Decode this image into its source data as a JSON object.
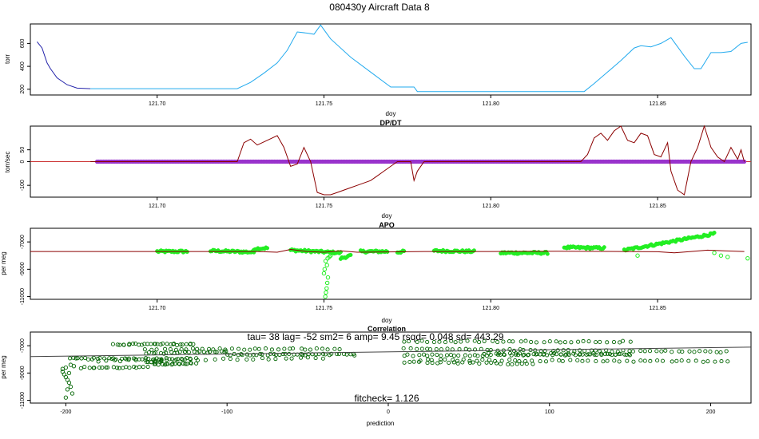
{
  "figure": {
    "title": "080430y   Aircraft Data 8"
  },
  "colors": {
    "pressure_dark": "#2222aa",
    "pressure_light": "#22aaee",
    "dpdt_line": "#8b0000",
    "dpdt_points": "#9933cc",
    "ref_line": "#cc3333",
    "apo_points": "#22ee22",
    "apo_line": "#8b0000",
    "corr_points": "#006400",
    "fit_line": "#444444",
    "axis": "#000000"
  },
  "chart_data": [
    {
      "type": "line",
      "title": "",
      "xlabel": "doy",
      "ylabel": "torr",
      "xlim": [
        121.662,
        121.878
      ],
      "ylim": [
        150,
        770
      ],
      "xticks": [
        121.7,
        121.75,
        121.8,
        121.85
      ],
      "xtick_labels": [
        "121.70",
        "121.75",
        "121.80",
        "121.85"
      ],
      "yticks": [
        200,
        400,
        600
      ],
      "ytick_labels": [
        "200",
        "400",
        "600"
      ],
      "series": [
        {
          "color_key": "pressure_dark",
          "x": [
            121.664,
            121.6655,
            121.667,
            121.668,
            121.67,
            121.673,
            121.676,
            121.68
          ],
          "y": [
            615,
            560,
            430,
            380,
            300,
            240,
            210,
            205
          ]
        },
        {
          "color_key": "pressure_light",
          "x": [
            121.68,
            121.7,
            121.724,
            121.728,
            121.732,
            121.736,
            121.739,
            121.742,
            121.745,
            121.747,
            121.749,
            121.752,
            121.758,
            121.764,
            121.77,
            121.776,
            121.777,
            121.778,
            121.79,
            121.8,
            121.815,
            121.828,
            121.831,
            121.835,
            121.839,
            121.843,
            121.845,
            121.848,
            121.851,
            121.854,
            121.858,
            121.861,
            121.863,
            121.866,
            121.869,
            121.872,
            121.875,
            121.877
          ],
          "y": [
            205,
            205,
            205,
            260,
            340,
            430,
            540,
            700,
            690,
            680,
            760,
            640,
            480,
            350,
            220,
            220,
            220,
            180,
            180,
            180,
            180,
            180,
            250,
            350,
            450,
            560,
            580,
            570,
            600,
            650,
            490,
            380,
            380,
            520,
            520,
            530,
            600,
            610
          ]
        }
      ]
    },
    {
      "type": "line",
      "title": "DP/DT",
      "xlabel": "doy",
      "ylabel": "torr/sec",
      "xlim": [
        121.662,
        121.878
      ],
      "ylim": [
        -150,
        150
      ],
      "xticks": [
        121.7,
        121.75,
        121.8,
        121.85
      ],
      "xtick_labels": [
        "121.70",
        "121.75",
        "121.80",
        "121.85"
      ],
      "yticks": [
        -100,
        0,
        50
      ],
      "ytick_labels": [
        "-100",
        "0",
        "50"
      ],
      "reference_y": 0,
      "points": {
        "x_range": [
          121.682,
          121.876
        ],
        "y": 0
      },
      "series": [
        {
          "color_key": "dpdt_line",
          "x": [
            121.68,
            121.7,
            121.724,
            121.726,
            121.728,
            121.73,
            121.733,
            121.736,
            121.738,
            121.74,
            121.742,
            121.744,
            121.746,
            121.748,
            121.75,
            121.752,
            121.754,
            121.756,
            121.758,
            121.76,
            121.762,
            121.764,
            121.766,
            121.768,
            121.77,
            121.772,
            121.774,
            121.776,
            121.777,
            121.778,
            121.78,
            121.8,
            121.827,
            121.829,
            121.831,
            121.833,
            121.835,
            121.837,
            121.839,
            121.841,
            121.843,
            121.845,
            121.847,
            121.849,
            121.851,
            121.853,
            121.854,
            121.856,
            121.858,
            121.86,
            121.862,
            121.864,
            121.866,
            121.868,
            121.87,
            121.872,
            121.874,
            121.875,
            121.876
          ],
          "y": [
            0,
            0,
            0,
            80,
            95,
            70,
            90,
            110,
            60,
            -20,
            -10,
            60,
            0,
            -130,
            -140,
            -140,
            -130,
            -120,
            -110,
            -100,
            -90,
            -80,
            -60,
            -40,
            -20,
            0,
            0,
            0,
            -80,
            -40,
            0,
            0,
            0,
            30,
            100,
            120,
            90,
            130,
            160,
            90,
            80,
            120,
            110,
            30,
            20,
            80,
            -40,
            -120,
            -140,
            0,
            60,
            150,
            60,
            20,
            0,
            60,
            10,
            50,
            0
          ]
        }
      ]
    },
    {
      "type": "scatter",
      "title": "APO",
      "xlabel": "doy",
      "ylabel": "per meg",
      "xlim": [
        121.662,
        121.878
      ],
      "ylim": [
        -11200,
        -6000
      ],
      "xticks": [
        121.7,
        121.75,
        121.8,
        121.85
      ],
      "xtick_labels": [
        "121.70",
        "121.75",
        "121.80",
        "121.85"
      ],
      "yticks": [
        -11000,
        -9000,
        -7000
      ],
      "ytick_labels": [
        "-11000",
        "-9000",
        "-7000"
      ],
      "segments": [
        {
          "x_range": [
            121.7,
            121.709
          ],
          "y_start": -7700,
          "y_end": -7700
        },
        {
          "x_range": [
            121.716,
            121.729
          ],
          "y_start": -7650,
          "y_end": -7750
        },
        {
          "x_range": [
            121.729,
            121.733
          ],
          "y_start": -7500,
          "y_end": -7450
        },
        {
          "x_range": [
            121.74,
            121.755
          ],
          "y_start": -7600,
          "y_end": -7800
        },
        {
          "x_range": [
            121.755,
            121.758
          ],
          "y_start": -8200,
          "y_end": -8000
        },
        {
          "x_range": [
            121.761,
            121.769
          ],
          "y_start": -7700,
          "y_end": -7700
        },
        {
          "x_range": [
            121.772,
            121.774
          ],
          "y_start": -7750,
          "y_end": -7700
        },
        {
          "x_range": [
            121.783,
            121.795
          ],
          "y_start": -7650,
          "y_end": -7700
        },
        {
          "x_range": [
            121.803,
            121.817
          ],
          "y_start": -7800,
          "y_end": -7800
        },
        {
          "x_range": [
            121.822,
            121.834
          ],
          "y_start": -7400,
          "y_end": -7450
        },
        {
          "x_range": [
            121.84,
            121.867
          ],
          "y_start": -7600,
          "y_end": -6400
        }
      ],
      "scattered": {
        "x": [
          121.7504,
          121.7506,
          121.7508,
          121.751,
          121.7512,
          121.75,
          121.7502,
          121.7509,
          121.7505,
          121.7511,
          121.7516,
          121.752,
          121.844,
          121.867,
          121.869,
          121.871,
          121.877
        ],
        "y": [
          -11000,
          -10700,
          -10400,
          -10000,
          -9600,
          -9300,
          -9000,
          -8700,
          -8400,
          -8200,
          -8100,
          -8000,
          -8000,
          -7800,
          -8000,
          -8100,
          -8200
        ]
      },
      "series": [
        {
          "color_key": "apo_line",
          "x": [
            121.662,
            121.7,
            121.73,
            121.736,
            121.74,
            121.745,
            121.75,
            121.755,
            121.76,
            121.78,
            121.8,
            121.82,
            121.84,
            121.85,
            121.855,
            121.86,
            121.865,
            121.87,
            121.876
          ],
          "y": [
            -7700,
            -7700,
            -7700,
            -7750,
            -7550,
            -7700,
            -7750,
            -7650,
            -7750,
            -7700,
            -7700,
            -7680,
            -7700,
            -7720,
            -7800,
            -7700,
            -7600,
            -7650,
            -7700
          ]
        }
      ]
    },
    {
      "type": "scatter",
      "title": "Correlation",
      "annotation": "tau= 38 lag= -52 sm2= 6 amp= 9.45 rsqd= 0.048 sd= 443.29",
      "footer": "fitcheck= 1.126",
      "xlabel": "prediction",
      "ylabel": "per meg",
      "xlim": [
        -222,
        225
      ],
      "ylim": [
        -11200,
        -6000
      ],
      "xticks": [
        -200,
        -100,
        0,
        100,
        200
      ],
      "xtick_labels": [
        "-200",
        "-100",
        "0",
        "100",
        "200"
      ],
      "yticks": [
        -11000,
        -9000,
        -7000
      ],
      "ytick_labels": [
        "-11000",
        "-9000",
        "-7000"
      ],
      "fit_line": {
        "x": [
          -222,
          225
        ],
        "y": [
          -7800,
          -7100
        ]
      },
      "bands": [
        {
          "x_range": [
            -198,
            -120
          ],
          "y_start": -7950,
          "y_end": -7950,
          "density": 40
        },
        {
          "x_range": [
            -190,
            -150
          ],
          "y_start": -8600,
          "y_end": -8600,
          "density": 20
        },
        {
          "x_range": [
            -170,
            -120
          ],
          "y_start": -6900,
          "y_end": -6900,
          "density": 30
        },
        {
          "x_range": [
            -150,
            -30
          ],
          "y_start": -7250,
          "y_end": -7250,
          "density": 35
        },
        {
          "x_range": [
            -150,
            -100
          ],
          "y_start": -7550,
          "y_end": -7450,
          "density": 25
        },
        {
          "x_range": [
            -100,
            -20
          ],
          "y_start": -7650,
          "y_end": -7650,
          "density": 40
        },
        {
          "x_range": [
            -145,
            -120
          ],
          "y_start": -8350,
          "y_end": -8300,
          "density": 18
        },
        {
          "x_range": [
            -150,
            -140
          ],
          "y_start": -8150,
          "y_end": -8150,
          "density": 10
        },
        {
          "x_range": [
            -180,
            -40
          ],
          "y_start": -8100,
          "y_end": -7900,
          "density": 30
        },
        {
          "x_range": [
            10,
            150
          ],
          "y_start": -6700,
          "y_end": -6700,
          "density": 40
        },
        {
          "x_range": [
            10,
            210
          ],
          "y_start": -7250,
          "y_end": -7450,
          "density": 60
        },
        {
          "x_range": [
            10,
            150
          ],
          "y_start": -7700,
          "y_end": -7650,
          "density": 50
        },
        {
          "x_range": [
            20,
            210
          ],
          "y_start": -8050,
          "y_end": -8150,
          "density": 50
        },
        {
          "x_range": [
            60,
            150
          ],
          "y_start": -7600,
          "y_end": -7600,
          "density": 30
        },
        {
          "x_range": [
            10,
            90
          ],
          "y_start": -8200,
          "y_end": -8350,
          "density": 25
        }
      ],
      "scattered": {
        "x": [
          -202,
          -201,
          -200,
          -199,
          -198,
          -197,
          -196,
          -200,
          -199,
          -198,
          -202,
          -200,
          -197,
          -195
        ],
        "y": [
          -8900,
          -9100,
          -9300,
          -9500,
          -9700,
          -10000,
          -10500,
          -10800,
          -10200,
          -9000,
          -8700,
          -8600,
          -8400,
          -8500
        ]
      }
    }
  ]
}
